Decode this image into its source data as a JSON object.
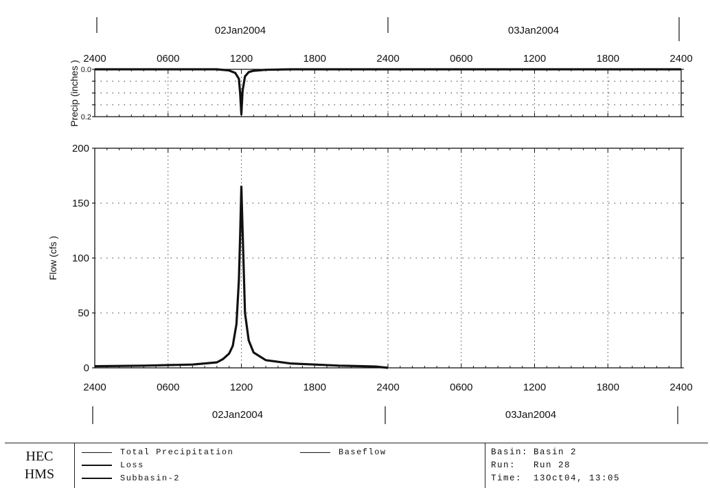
{
  "chart_data": [
    {
      "type": "line",
      "ylabel": "Precip (inches )",
      "y_axis_inverted": true,
      "ylim": [
        0.0,
        0.2
      ],
      "yticks": [
        "0.0",
        "0.2"
      ],
      "xlim_hours": [
        0,
        48
      ],
      "series": [
        {
          "name": "Total Precipitation",
          "x_hours": [
            0,
            10,
            11,
            11.5,
            11.8,
            11.9,
            12.0,
            12.1,
            12.3,
            12.6,
            13,
            14,
            16,
            24,
            48
          ],
          "values": [
            0.0,
            0.0,
            0.005,
            0.015,
            0.04,
            0.1,
            0.19,
            0.09,
            0.03,
            0.012,
            0.006,
            0.002,
            0.0,
            0.0,
            0.0
          ]
        }
      ],
      "grid": "dotted"
    },
    {
      "type": "line",
      "ylabel": "Flow (cfs    )",
      "ylim": [
        0,
        200
      ],
      "yticks": [
        "0",
        "50",
        "100",
        "150",
        "200"
      ],
      "xlim_hours": [
        0,
        48
      ],
      "series": [
        {
          "name": "Subbasin-2",
          "x_hours": [
            0,
            4,
            8,
            9,
            10,
            10.5,
            11,
            11.3,
            11.6,
            11.8,
            11.9,
            12.0,
            12.1,
            12.3,
            12.6,
            13,
            14,
            16,
            18,
            20,
            22,
            23,
            24
          ],
          "values": [
            1.5,
            2,
            3,
            4,
            5,
            8,
            13,
            20,
            40,
            80,
            120,
            165,
            125,
            50,
            25,
            14,
            7,
            4,
            3,
            2,
            1.5,
            1.2,
            0
          ]
        }
      ],
      "grid": "dotted"
    }
  ],
  "axes": {
    "top_date_labels": [
      "02Jan2004",
      "03Jan2004"
    ],
    "top_tick_labels": [
      "2400",
      "0600",
      "1200",
      "1800",
      "2400",
      "0600",
      "1200",
      "1800",
      "2400"
    ],
    "bottom_tick_labels": [
      "2400",
      "0600",
      "1200",
      "1800",
      "2400",
      "0600",
      "1200",
      "1800",
      "2400"
    ],
    "bottom_date_labels": [
      "02Jan2004",
      "03Jan2004"
    ]
  },
  "logo": {
    "line1": "HEC",
    "line2": "HMS"
  },
  "legend": {
    "items": [
      "Total Precipitation",
      "Loss",
      "Subbasin-2",
      "Baseflow"
    ]
  },
  "info": {
    "basin_key": "Basin:",
    "basin_val": "Basin 2",
    "run_key": "Run:",
    "run_val": "Run 28",
    "time_key": "Time:",
    "time_val": "13Oct04, 13:05"
  },
  "colors": {
    "line": "#111111",
    "grid": "#333333",
    "background": "#ffffff"
  }
}
